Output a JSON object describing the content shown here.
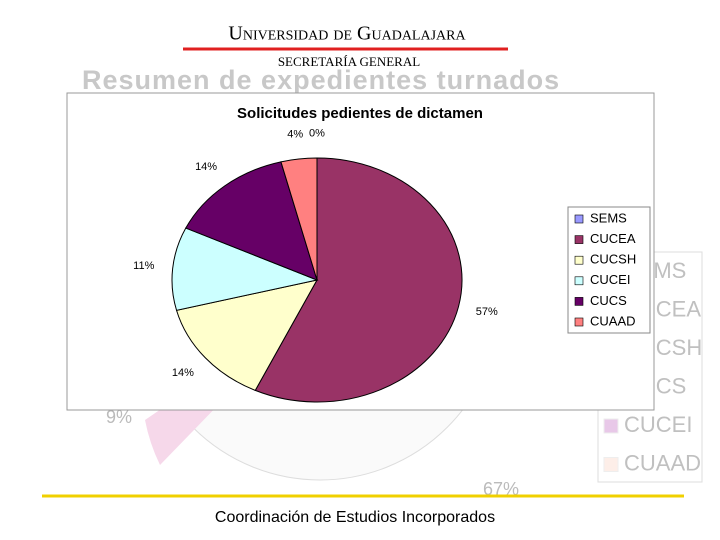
{
  "header": {
    "university": "Universidad de Guadalajara",
    "department": "SECRETARÍA GENERAL"
  },
  "background": {
    "title": "Resumen de expedientes turnados",
    "labels": [
      "9%",
      "67%"
    ],
    "legend": [
      "SEMS",
      "CUCEA",
      "CUCSH",
      "CUCS",
      "CUCEI",
      "CUAAD"
    ]
  },
  "chart_data": {
    "type": "pie",
    "title": "Solicitudes pedientes de dictamen",
    "categories": [
      "SEMS",
      "CUCEA",
      "CUCSH",
      "CUCEI",
      "CUCS",
      "CUAAD"
    ],
    "values": [
      0,
      57,
      14,
      11,
      14,
      4
    ],
    "value_labels": [
      "0%",
      "57%",
      "14%",
      "11%",
      "14%",
      "4%"
    ],
    "colors": [
      "#9999ff",
      "#993366",
      "#ffffcc",
      "#ccffff",
      "#660066",
      "#ff8080"
    ],
    "legend": "right"
  },
  "footer": "Coordinación de Estudios Incorporados"
}
